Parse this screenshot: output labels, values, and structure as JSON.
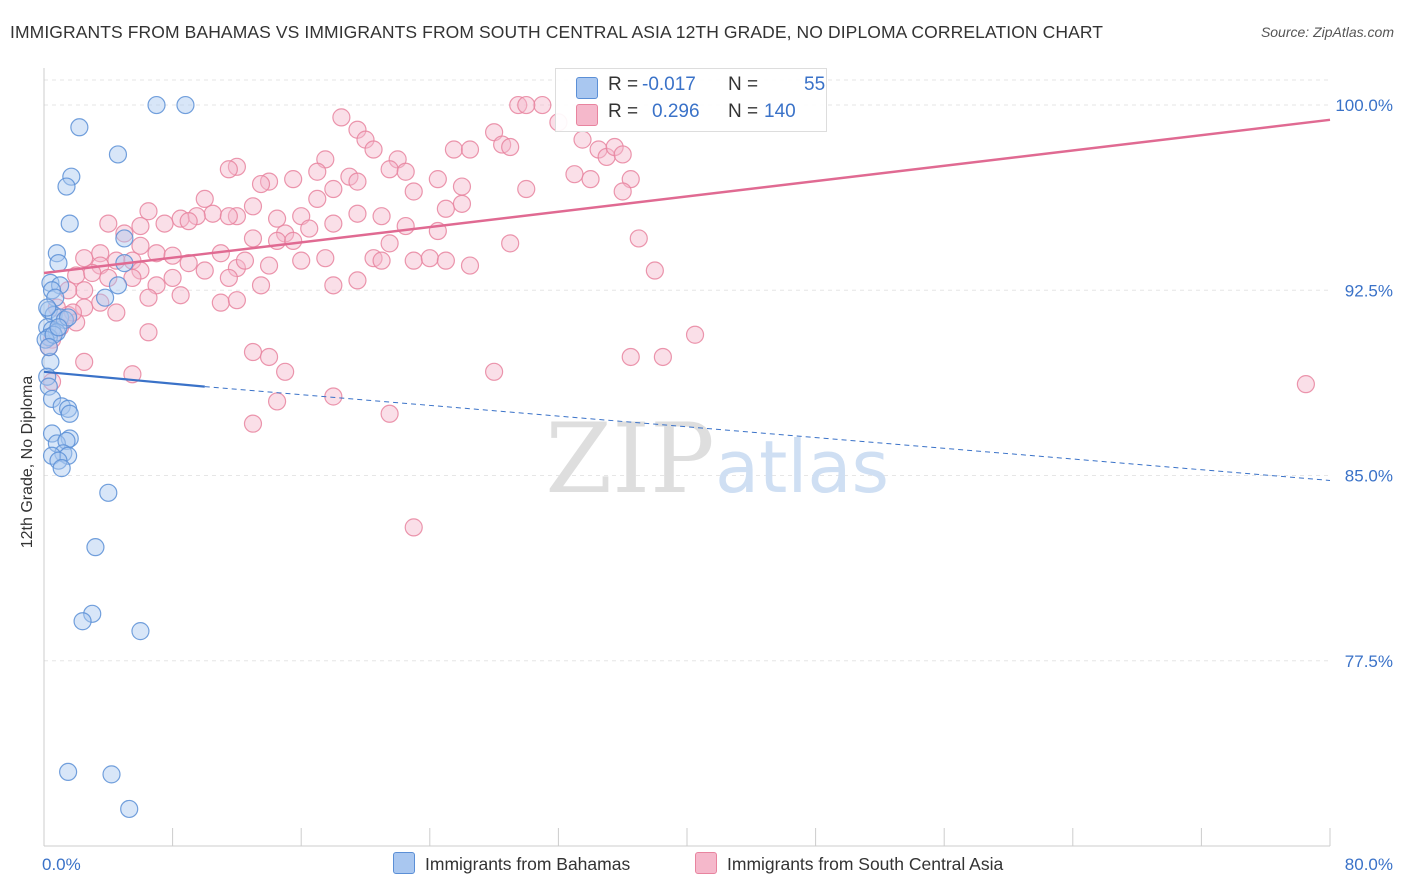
{
  "chart_data": {
    "type": "scatter",
    "title": "IMMIGRANTS FROM BAHAMAS VS IMMIGRANTS FROM SOUTH CENTRAL ASIA 12TH GRADE, NO DIPLOMA CORRELATION CHART",
    "source": "Source: ZipAtlas.com",
    "xlabel": "",
    "ylabel": "12th Grade, No Diploma",
    "xlim": [
      0,
      80
    ],
    "ylim": [
      70.0,
      101.5
    ],
    "x_tick_labels": [
      "0.0%",
      "80.0%"
    ],
    "y_ticks": [
      77.5,
      85.0,
      92.5,
      100.0
    ],
    "y_tick_labels": [
      "77.5%",
      "85.0%",
      "92.5%",
      "100.0%"
    ],
    "grid": true,
    "watermark": {
      "zip": "ZIP",
      "atlas": "atlas"
    },
    "legend": {
      "r_label": "R =",
      "n_label": "N =",
      "entries": [
        {
          "name": "Immigrants from Bahamas",
          "r": "-0.017",
          "n": "55"
        },
        {
          "name": "Immigrants from South Central Asia",
          "r": "0.296",
          "n": "140"
        }
      ]
    },
    "colors": {
      "blue_fill": "#a9c7f0",
      "blue_stroke": "#5b8fd6",
      "blue_line": "#3a72c8",
      "pink_fill": "#f5b8cb",
      "pink_stroke": "#e8849f",
      "pink_line": "#e06a92",
      "axis_label": "#3a72c8",
      "grid": "#e6e6e6"
    },
    "series": [
      {
        "name": "Immigrants from Bahamas",
        "color": "blue",
        "trend": {
          "x0": 0,
          "y0": 89.2,
          "x1": 10,
          "y1": 88.6,
          "dash_to_x": 80,
          "dash_to_y": 84.8
        },
        "points": [
          [
            7.0,
            100.0
          ],
          [
            8.8,
            100.0
          ],
          [
            2.2,
            99.1
          ],
          [
            4.6,
            98.0
          ],
          [
            1.7,
            97.1
          ],
          [
            1.4,
            96.7
          ],
          [
            1.6,
            95.2
          ],
          [
            5.0,
            94.6
          ],
          [
            0.8,
            94.0
          ],
          [
            0.9,
            93.6
          ],
          [
            5.0,
            93.6
          ],
          [
            0.4,
            92.8
          ],
          [
            1.0,
            92.7
          ],
          [
            0.5,
            92.5
          ],
          [
            4.6,
            92.7
          ],
          [
            3.8,
            92.2
          ],
          [
            0.7,
            92.2
          ],
          [
            0.3,
            91.7
          ],
          [
            0.6,
            91.5
          ],
          [
            1.0,
            91.4
          ],
          [
            1.3,
            91.3
          ],
          [
            1.5,
            91.4
          ],
          [
            0.2,
            91.0
          ],
          [
            0.5,
            90.9
          ],
          [
            0.8,
            90.8
          ],
          [
            0.3,
            90.6
          ],
          [
            0.1,
            90.5
          ],
          [
            0.6,
            90.7
          ],
          [
            0.4,
            89.6
          ],
          [
            0.2,
            89.0
          ],
          [
            0.3,
            88.6
          ],
          [
            0.5,
            88.1
          ],
          [
            1.1,
            87.8
          ],
          [
            1.5,
            87.7
          ],
          [
            1.6,
            87.5
          ],
          [
            0.5,
            86.7
          ],
          [
            1.6,
            86.5
          ],
          [
            0.8,
            86.3
          ],
          [
            1.4,
            86.4
          ],
          [
            1.2,
            85.9
          ],
          [
            1.5,
            85.8
          ],
          [
            0.5,
            85.8
          ],
          [
            0.9,
            85.6
          ],
          [
            1.1,
            85.3
          ],
          [
            4.0,
            84.3
          ],
          [
            3.2,
            82.1
          ],
          [
            3.0,
            79.4
          ],
          [
            2.4,
            79.1
          ],
          [
            6.0,
            78.7
          ],
          [
            1.5,
            73.0
          ],
          [
            4.2,
            72.9
          ],
          [
            5.3,
            71.5
          ],
          [
            0.3,
            90.2
          ],
          [
            0.9,
            91.0
          ],
          [
            0.2,
            91.8
          ]
        ]
      },
      {
        "name": "Immigrants from South Central Asia",
        "color": "pink",
        "trend": {
          "x0": 0,
          "y0": 93.2,
          "x1": 80,
          "y1": 99.4
        },
        "points": [
          [
            29.5,
            100.0
          ],
          [
            31.0,
            100.0
          ],
          [
            18.5,
            99.5
          ],
          [
            19.5,
            99.0
          ],
          [
            20.0,
            98.6
          ],
          [
            28.0,
            98.9
          ],
          [
            28.5,
            98.4
          ],
          [
            29.0,
            98.3
          ],
          [
            25.5,
            98.2
          ],
          [
            26.5,
            98.2
          ],
          [
            34.5,
            98.2
          ],
          [
            35.0,
            97.9
          ],
          [
            35.5,
            98.3
          ],
          [
            36.0,
            98.0
          ],
          [
            20.5,
            98.2
          ],
          [
            22.0,
            97.8
          ],
          [
            17.5,
            97.8
          ],
          [
            12.0,
            97.5
          ],
          [
            11.5,
            97.4
          ],
          [
            17.0,
            97.3
          ],
          [
            21.5,
            97.4
          ],
          [
            22.5,
            97.3
          ],
          [
            19.0,
            97.1
          ],
          [
            24.5,
            97.0
          ],
          [
            15.5,
            97.0
          ],
          [
            14.0,
            96.9
          ],
          [
            13.5,
            96.8
          ],
          [
            18.0,
            96.6
          ],
          [
            19.5,
            96.9
          ],
          [
            23.0,
            96.5
          ],
          [
            26.0,
            96.7
          ],
          [
            30.0,
            96.6
          ],
          [
            33.0,
            97.2
          ],
          [
            36.5,
            97.0
          ],
          [
            34.0,
            97.0
          ],
          [
            10.0,
            96.2
          ],
          [
            13.0,
            95.9
          ],
          [
            17.0,
            96.2
          ],
          [
            16.0,
            95.5
          ],
          [
            19.5,
            95.6
          ],
          [
            21.0,
            95.5
          ],
          [
            25.0,
            95.8
          ],
          [
            26.0,
            96.0
          ],
          [
            10.5,
            95.6
          ],
          [
            12.0,
            95.5
          ],
          [
            14.5,
            95.4
          ],
          [
            6.5,
            95.7
          ],
          [
            8.5,
            95.4
          ],
          [
            7.5,
            95.2
          ],
          [
            6.0,
            95.1
          ],
          [
            9.5,
            95.5
          ],
          [
            11.5,
            95.5
          ],
          [
            16.5,
            95.0
          ],
          [
            15.0,
            94.8
          ],
          [
            18.0,
            95.2
          ],
          [
            22.5,
            95.1
          ],
          [
            24.5,
            94.9
          ],
          [
            4.0,
            95.2
          ],
          [
            5.0,
            94.8
          ],
          [
            6.0,
            94.3
          ],
          [
            3.5,
            94.0
          ],
          [
            13.0,
            94.6
          ],
          [
            14.5,
            94.5
          ],
          [
            15.5,
            94.5
          ],
          [
            21.5,
            94.4
          ],
          [
            29.0,
            94.4
          ],
          [
            37.0,
            94.6
          ],
          [
            2.5,
            93.8
          ],
          [
            3.5,
            93.5
          ],
          [
            4.5,
            93.7
          ],
          [
            5.5,
            93.7
          ],
          [
            6.0,
            93.3
          ],
          [
            7.0,
            94.0
          ],
          [
            8.0,
            93.9
          ],
          [
            9.0,
            93.6
          ],
          [
            10.0,
            93.3
          ],
          [
            11.0,
            94.0
          ],
          [
            12.0,
            93.4
          ],
          [
            12.5,
            93.7
          ],
          [
            14.0,
            93.5
          ],
          [
            16.0,
            93.7
          ],
          [
            17.5,
            93.8
          ],
          [
            20.5,
            93.8
          ],
          [
            23.0,
            93.7
          ],
          [
            24.0,
            93.8
          ],
          [
            25.0,
            93.7
          ],
          [
            38.0,
            93.3
          ],
          [
            2.0,
            93.1
          ],
          [
            3.0,
            93.2
          ],
          [
            4.0,
            93.0
          ],
          [
            5.5,
            93.0
          ],
          [
            7.0,
            92.7
          ],
          [
            8.0,
            93.0
          ],
          [
            11.5,
            93.0
          ],
          [
            13.5,
            92.7
          ],
          [
            18.0,
            92.7
          ],
          [
            19.5,
            92.9
          ],
          [
            8.5,
            92.3
          ],
          [
            2.5,
            92.5
          ],
          [
            1.5,
            92.5
          ],
          [
            3.5,
            92.0
          ],
          [
            6.5,
            92.2
          ],
          [
            11.0,
            92.0
          ],
          [
            12.0,
            92.1
          ],
          [
            2.5,
            91.8
          ],
          [
            1.5,
            91.5
          ],
          [
            4.5,
            91.6
          ],
          [
            2.0,
            91.2
          ],
          [
            1.0,
            91.0
          ],
          [
            0.5,
            90.5
          ],
          [
            0.3,
            90.2
          ],
          [
            6.5,
            90.8
          ],
          [
            13.0,
            90.0
          ],
          [
            14.0,
            89.8
          ],
          [
            15.0,
            89.2
          ],
          [
            0.5,
            88.8
          ],
          [
            2.5,
            89.6
          ],
          [
            5.5,
            89.1
          ],
          [
            36.5,
            89.8
          ],
          [
            38.5,
            89.8
          ],
          [
            28.0,
            89.2
          ],
          [
            40.5,
            90.7
          ],
          [
            14.5,
            88.0
          ],
          [
            18.0,
            88.2
          ],
          [
            13.0,
            87.1
          ],
          [
            21.5,
            87.5
          ],
          [
            23.0,
            82.9
          ],
          [
            78.5,
            88.7
          ],
          [
            30.0,
            100.0
          ],
          [
            21.0,
            93.7
          ],
          [
            0.8,
            91.8
          ],
          [
            1.8,
            91.6
          ],
          [
            33.5,
            98.6
          ],
          [
            32.0,
            99.3
          ],
          [
            36.0,
            96.5
          ],
          [
            26.5,
            93.5
          ],
          [
            9.0,
            95.3
          ]
        ]
      }
    ]
  }
}
